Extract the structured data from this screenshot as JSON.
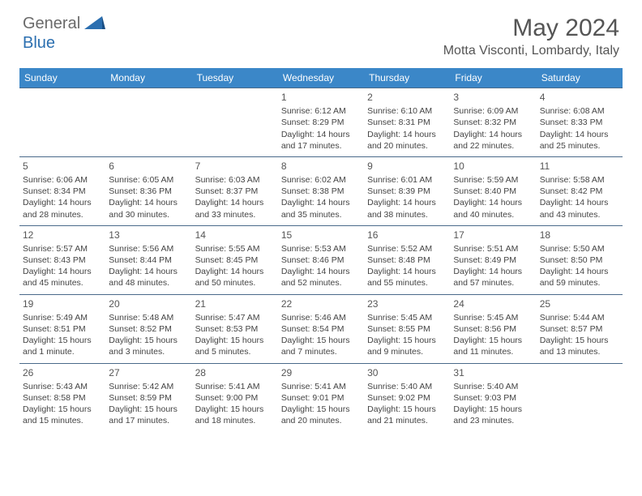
{
  "brand": {
    "general": "General",
    "blue": "Blue"
  },
  "title": "May 2024",
  "location": "Motta Visconti, Lombardy, Italy",
  "colors": {
    "header_bg": "#3b87c8",
    "header_text": "#ffffff",
    "cell_border": "#4a6a8a",
    "body_text": "#444444",
    "title_text": "#555555",
    "logo_gray": "#6a6a6a",
    "logo_blue": "#2b6fb0"
  },
  "weekdays": [
    "Sunday",
    "Monday",
    "Tuesday",
    "Wednesday",
    "Thursday",
    "Friday",
    "Saturday"
  ],
  "weeks": [
    [
      null,
      null,
      null,
      {
        "n": "1",
        "sr": "Sunrise: 6:12 AM",
        "ss": "Sunset: 8:29 PM",
        "d1": "Daylight: 14 hours",
        "d2": "and 17 minutes."
      },
      {
        "n": "2",
        "sr": "Sunrise: 6:10 AM",
        "ss": "Sunset: 8:31 PM",
        "d1": "Daylight: 14 hours",
        "d2": "and 20 minutes."
      },
      {
        "n": "3",
        "sr": "Sunrise: 6:09 AM",
        "ss": "Sunset: 8:32 PM",
        "d1": "Daylight: 14 hours",
        "d2": "and 22 minutes."
      },
      {
        "n": "4",
        "sr": "Sunrise: 6:08 AM",
        "ss": "Sunset: 8:33 PM",
        "d1": "Daylight: 14 hours",
        "d2": "and 25 minutes."
      }
    ],
    [
      {
        "n": "5",
        "sr": "Sunrise: 6:06 AM",
        "ss": "Sunset: 8:34 PM",
        "d1": "Daylight: 14 hours",
        "d2": "and 28 minutes."
      },
      {
        "n": "6",
        "sr": "Sunrise: 6:05 AM",
        "ss": "Sunset: 8:36 PM",
        "d1": "Daylight: 14 hours",
        "d2": "and 30 minutes."
      },
      {
        "n": "7",
        "sr": "Sunrise: 6:03 AM",
        "ss": "Sunset: 8:37 PM",
        "d1": "Daylight: 14 hours",
        "d2": "and 33 minutes."
      },
      {
        "n": "8",
        "sr": "Sunrise: 6:02 AM",
        "ss": "Sunset: 8:38 PM",
        "d1": "Daylight: 14 hours",
        "d2": "and 35 minutes."
      },
      {
        "n": "9",
        "sr": "Sunrise: 6:01 AM",
        "ss": "Sunset: 8:39 PM",
        "d1": "Daylight: 14 hours",
        "d2": "and 38 minutes."
      },
      {
        "n": "10",
        "sr": "Sunrise: 5:59 AM",
        "ss": "Sunset: 8:40 PM",
        "d1": "Daylight: 14 hours",
        "d2": "and 40 minutes."
      },
      {
        "n": "11",
        "sr": "Sunrise: 5:58 AM",
        "ss": "Sunset: 8:42 PM",
        "d1": "Daylight: 14 hours",
        "d2": "and 43 minutes."
      }
    ],
    [
      {
        "n": "12",
        "sr": "Sunrise: 5:57 AM",
        "ss": "Sunset: 8:43 PM",
        "d1": "Daylight: 14 hours",
        "d2": "and 45 minutes."
      },
      {
        "n": "13",
        "sr": "Sunrise: 5:56 AM",
        "ss": "Sunset: 8:44 PM",
        "d1": "Daylight: 14 hours",
        "d2": "and 48 minutes."
      },
      {
        "n": "14",
        "sr": "Sunrise: 5:55 AM",
        "ss": "Sunset: 8:45 PM",
        "d1": "Daylight: 14 hours",
        "d2": "and 50 minutes."
      },
      {
        "n": "15",
        "sr": "Sunrise: 5:53 AM",
        "ss": "Sunset: 8:46 PM",
        "d1": "Daylight: 14 hours",
        "d2": "and 52 minutes."
      },
      {
        "n": "16",
        "sr": "Sunrise: 5:52 AM",
        "ss": "Sunset: 8:48 PM",
        "d1": "Daylight: 14 hours",
        "d2": "and 55 minutes."
      },
      {
        "n": "17",
        "sr": "Sunrise: 5:51 AM",
        "ss": "Sunset: 8:49 PM",
        "d1": "Daylight: 14 hours",
        "d2": "and 57 minutes."
      },
      {
        "n": "18",
        "sr": "Sunrise: 5:50 AM",
        "ss": "Sunset: 8:50 PM",
        "d1": "Daylight: 14 hours",
        "d2": "and 59 minutes."
      }
    ],
    [
      {
        "n": "19",
        "sr": "Sunrise: 5:49 AM",
        "ss": "Sunset: 8:51 PM",
        "d1": "Daylight: 15 hours",
        "d2": "and 1 minute."
      },
      {
        "n": "20",
        "sr": "Sunrise: 5:48 AM",
        "ss": "Sunset: 8:52 PM",
        "d1": "Daylight: 15 hours",
        "d2": "and 3 minutes."
      },
      {
        "n": "21",
        "sr": "Sunrise: 5:47 AM",
        "ss": "Sunset: 8:53 PM",
        "d1": "Daylight: 15 hours",
        "d2": "and 5 minutes."
      },
      {
        "n": "22",
        "sr": "Sunrise: 5:46 AM",
        "ss": "Sunset: 8:54 PM",
        "d1": "Daylight: 15 hours",
        "d2": "and 7 minutes."
      },
      {
        "n": "23",
        "sr": "Sunrise: 5:45 AM",
        "ss": "Sunset: 8:55 PM",
        "d1": "Daylight: 15 hours",
        "d2": "and 9 minutes."
      },
      {
        "n": "24",
        "sr": "Sunrise: 5:45 AM",
        "ss": "Sunset: 8:56 PM",
        "d1": "Daylight: 15 hours",
        "d2": "and 11 minutes."
      },
      {
        "n": "25",
        "sr": "Sunrise: 5:44 AM",
        "ss": "Sunset: 8:57 PM",
        "d1": "Daylight: 15 hours",
        "d2": "and 13 minutes."
      }
    ],
    [
      {
        "n": "26",
        "sr": "Sunrise: 5:43 AM",
        "ss": "Sunset: 8:58 PM",
        "d1": "Daylight: 15 hours",
        "d2": "and 15 minutes."
      },
      {
        "n": "27",
        "sr": "Sunrise: 5:42 AM",
        "ss": "Sunset: 8:59 PM",
        "d1": "Daylight: 15 hours",
        "d2": "and 17 minutes."
      },
      {
        "n": "28",
        "sr": "Sunrise: 5:41 AM",
        "ss": "Sunset: 9:00 PM",
        "d1": "Daylight: 15 hours",
        "d2": "and 18 minutes."
      },
      {
        "n": "29",
        "sr": "Sunrise: 5:41 AM",
        "ss": "Sunset: 9:01 PM",
        "d1": "Daylight: 15 hours",
        "d2": "and 20 minutes."
      },
      {
        "n": "30",
        "sr": "Sunrise: 5:40 AM",
        "ss": "Sunset: 9:02 PM",
        "d1": "Daylight: 15 hours",
        "d2": "and 21 minutes."
      },
      {
        "n": "31",
        "sr": "Sunrise: 5:40 AM",
        "ss": "Sunset: 9:03 PM",
        "d1": "Daylight: 15 hours",
        "d2": "and 23 minutes."
      },
      null
    ]
  ]
}
